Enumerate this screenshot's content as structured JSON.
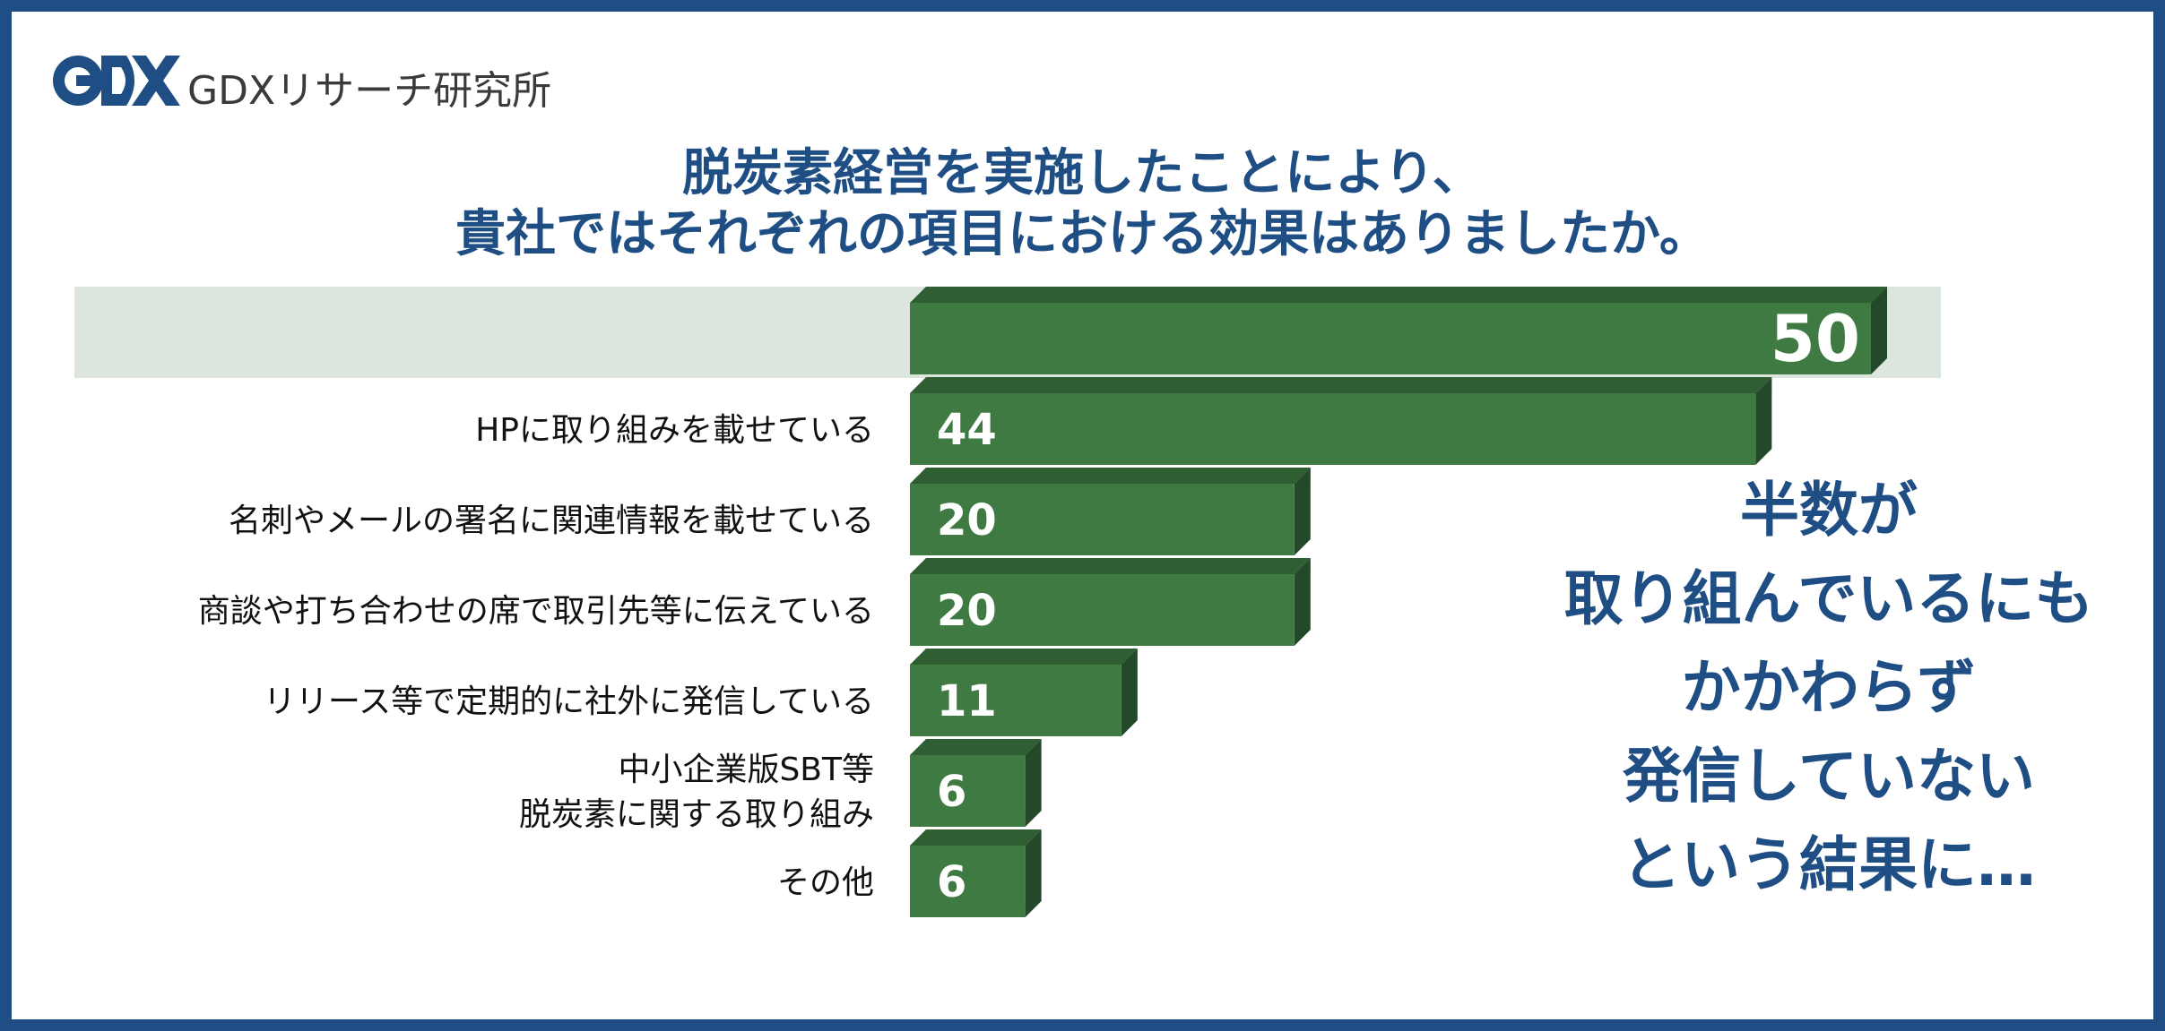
{
  "brand": {
    "name": "GDXリサーチ研究所",
    "logo_icon": "gdx-logo-icon",
    "color": "#1f4e84"
  },
  "title": {
    "line1": "脱炭素経営を実施したことにより、",
    "line2": "貴社ではそれぞれの項目における効果はありましたか。"
  },
  "callout": {
    "lines": [
      "半数が",
      "取り組んでいるにも",
      "かかわらず",
      "発信していない",
      "という結果に…"
    ]
  },
  "chart_data": {
    "type": "bar",
    "orientation": "horizontal",
    "categories": [
      "",
      "HPに取り組みを載せている",
      "名刺やメールの署名に関連情報を載せている",
      "商談や打ち合わせの席で取引先等に伝えている",
      "リリース等で定期的に社外に発信している",
      "中小企業版SBT等\n脱炭素に関する取り組み",
      "その他"
    ],
    "values": [
      50,
      44,
      20,
      20,
      11,
      6,
      6
    ],
    "highlighted_index": 0,
    "colors": {
      "bar": "#3f7a43",
      "bar_top": "#2f5e32",
      "bar_side": "#24492a",
      "highlight_band": "#dde5df",
      "value_text": "#ffffff"
    }
  }
}
